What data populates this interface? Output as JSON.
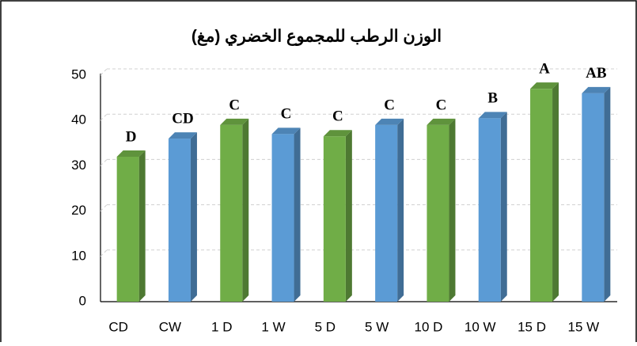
{
  "chart_data": {
    "type": "bar3d",
    "title": "الوزن الرطب للمجموع الخضري (مغ)",
    "categories": [
      "CD",
      "CW",
      "1 D",
      "1 W",
      "5 D",
      "5 W",
      "10 D",
      "10 W",
      "15 D",
      "15 W"
    ],
    "values": [
      32,
      36,
      39,
      37,
      36.5,
      39,
      39,
      40.5,
      47,
      46
    ],
    "annotations": [
      "D",
      "CD",
      "C",
      "C",
      "C",
      "C",
      "C",
      "B",
      "A",
      "AB"
    ],
    "colors": [
      "#70ad47",
      "#5b9bd5",
      "#70ad47",
      "#5b9bd5",
      "#70ad47",
      "#5b9bd5",
      "#70ad47",
      "#5b9bd5",
      "#70ad47",
      "#5b9bd5"
    ],
    "ylim": [
      0,
      50
    ],
    "yticks": [
      0,
      10,
      20,
      30,
      40,
      50
    ],
    "grid": true
  }
}
